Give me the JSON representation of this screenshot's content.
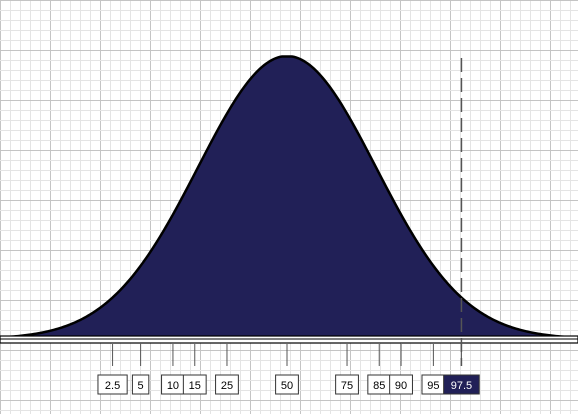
{
  "chart_data": {
    "type": "area",
    "title": "",
    "xlabel": "",
    "ylabel": "",
    "distribution": "normal",
    "x_unit": "percentile",
    "grid": true,
    "fill_color": "#212057",
    "outline_color": "#000000",
    "highlight_color": "#212057",
    "percentiles": [
      "2.5",
      "5",
      "10",
      "15",
      "25",
      "50",
      "75",
      "85",
      "90",
      "95",
      "97.5"
    ],
    "highlighted_percentile": "97.5",
    "marker_line_percentile": "97.5"
  }
}
